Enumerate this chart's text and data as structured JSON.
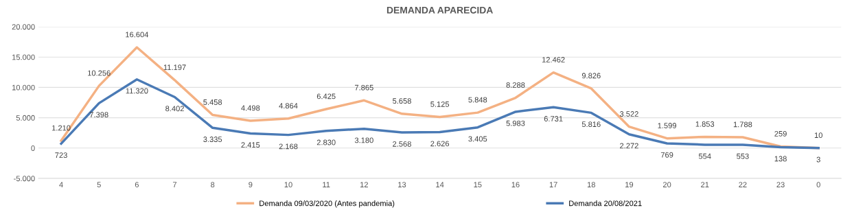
{
  "chart_data": {
    "type": "line",
    "title": "DEMANDA APARECIDA",
    "categories": [
      "4",
      "5",
      "6",
      "7",
      "8",
      "9",
      "10",
      "11",
      "12",
      "13",
      "14",
      "15",
      "16",
      "17",
      "18",
      "19",
      "20",
      "21",
      "22",
      "23",
      "0"
    ],
    "series": [
      {
        "name": "Demanda 09/03/2020 (Antes pandemia)",
        "color": "#f4b183",
        "values": [
          1210,
          10256,
          16604,
          11197,
          5458,
          4498,
          4864,
          6425,
          7865,
          5658,
          5125,
          5848,
          8288,
          12462,
          9826,
          3522,
          1599,
          1853,
          1788,
          259,
          10
        ],
        "value_labels": [
          "1.210",
          "10.256",
          "16.604",
          "11.197",
          "5.458",
          "4.498",
          "4.864",
          "6.425",
          "7.865",
          "5.658",
          "5.125",
          "5.848",
          "8.288",
          "12.462",
          "9.826",
          "3.522",
          "1.599",
          "1.853",
          "1.788",
          "259",
          "10"
        ]
      },
      {
        "name": "Demanda 20/08/2021",
        "color": "#4a7ab5",
        "values": [
          723,
          7398,
          11320,
          8402,
          3335,
          2415,
          2168,
          2830,
          3180,
          2568,
          2626,
          3405,
          5983,
          6731,
          5816,
          2272,
          769,
          554,
          553,
          138,
          3
        ],
        "value_labels": [
          "723",
          "7.398",
          "11.320",
          "8.402",
          "3.335",
          "2.415",
          "2.168",
          "2.830",
          "3.180",
          "2.568",
          "2.626",
          "3.405",
          "5.983",
          "6.731",
          "5.816",
          "2.272",
          "769",
          "554",
          "553",
          "138",
          "3"
        ]
      }
    ],
    "ylim": [
      -5000,
      20000
    ],
    "yticks": [
      {
        "value": -5000,
        "label": "-5.000"
      },
      0,
      {
        "value": 5000,
        "label": "5.000"
      },
      {
        "value": 10000,
        "label": "10.000"
      },
      {
        "value": 15000,
        "label": "15.000"
      },
      {
        "value": 20000,
        "label": "20.000"
      }
    ],
    "grid": "y",
    "legend": "bottom",
    "marker": "none",
    "line_style": "solid"
  }
}
